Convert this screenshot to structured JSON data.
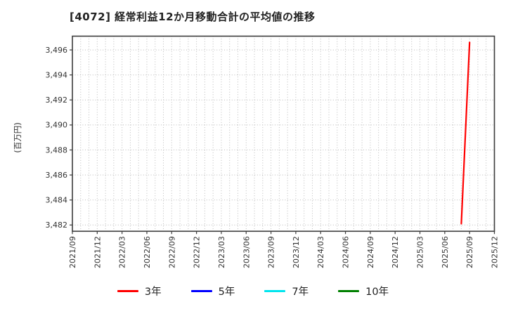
{
  "chart_data": {
    "type": "line",
    "title": "[4072]  経常利益12か月移動合計の平均値の推移",
    "ylabel": "(百万円)",
    "x_start_month": "2021/09",
    "x_end_month": "2025/12",
    "x_tick_labels": [
      "2021/09",
      "2021/12",
      "2022/03",
      "2022/06",
      "2022/09",
      "2022/12",
      "2023/03",
      "2023/06",
      "2023/09",
      "2023/12",
      "2024/03",
      "2024/06",
      "2024/09",
      "2024/12",
      "2025/03",
      "2025/06",
      "2025/09",
      "2025/12"
    ],
    "y_tick_values": [
      3482,
      3484,
      3486,
      3488,
      3490,
      3492,
      3494,
      3496
    ],
    "y_tick_labels": [
      "3,482",
      "3,484",
      "3,486",
      "3,488",
      "3,490",
      "3,492",
      "3,494",
      "3,496"
    ],
    "ylim": [
      3481.5,
      3497.1
    ],
    "grid": "dotted gray, vertical monthly lines and horizontal lines at each labeled tick",
    "legend_position": "bottom-center",
    "colors": {
      "grid": "#bbbbbb",
      "axis_border": "#3b3b3b",
      "tick_text": "#333333",
      "title_text": "#222222"
    },
    "series": [
      {
        "name": "3年",
        "color": "#ff0000",
        "points": [
          [
            "2025/08",
            3482.1
          ],
          [
            "2025/09",
            3496.6
          ]
        ]
      },
      {
        "name": "5年",
        "color": "#0000ff",
        "points": []
      },
      {
        "name": "7年",
        "color": "#00e5ee",
        "points": []
      },
      {
        "name": "10年",
        "color": "#008000",
        "points": []
      }
    ]
  }
}
